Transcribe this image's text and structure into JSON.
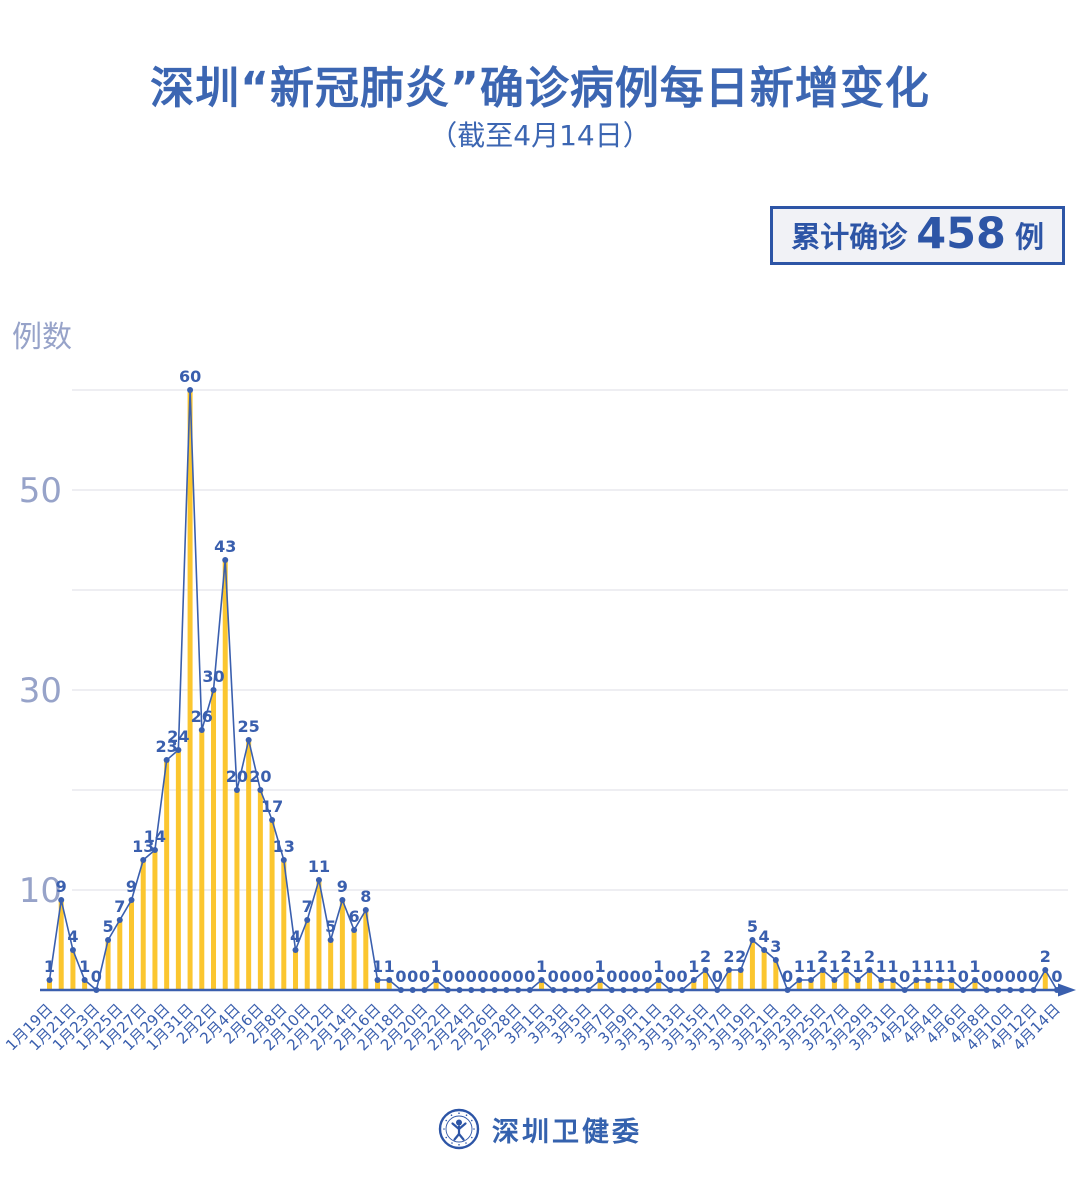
{
  "header": {
    "title": "深圳“新冠肺炎”确诊病例每日新增变化",
    "subtitle": "（截至4月14日）"
  },
  "badge": {
    "prefix": "累计确诊",
    "value": "458",
    "suffix": "例"
  },
  "footer": {
    "logo_icon": "shenzhen-health-commission-emblem-icon",
    "text": "深圳卫健委"
  },
  "colors": {
    "accent_blue": "#3a5fae",
    "title_blue": "#3c66b2",
    "bar_yellow": "#fbc62f",
    "grid_gray": "#e8e9ee",
    "y_label_gray": "#97a3c9",
    "badge_blue": "#2d55a6",
    "badge_bg": "#f1f2f6",
    "background": "#ffffff"
  },
  "chart_data": {
    "type": "bar",
    "overlay": "line",
    "title": "深圳“新冠肺炎”确诊病例每日新增变化",
    "subtitle": "（截至4月14日）",
    "ylabel": "例数",
    "xlabel": "",
    "legend": "none",
    "grid": "horizontal",
    "ylim": [
      0,
      62
    ],
    "n_points": 87,
    "x_start": "1月19日",
    "x_end": "4月14日",
    "x_tick_labels": [
      "1月19日",
      "1月21日",
      "1月23日",
      "1月25日",
      "1月27日",
      "1月29日",
      "1月31日",
      "2月2日",
      "2月4日",
      "2月6日",
      "2月8日",
      "2月10日",
      "2月12日",
      "2月14日",
      "2月16日",
      "2月18日",
      "2月20日",
      "2月22日",
      "2月24日",
      "2月26日",
      "2月28日",
      "3月1日",
      "3月3日",
      "3月5日",
      "3月7日",
      "3月9日",
      "3月11日",
      "3月13日",
      "3月15日",
      "3月17日",
      "3月19日",
      "3月21日",
      "3月23日",
      "3月25日",
      "3月27日",
      "3月29日",
      "3月31日",
      "4月2日",
      "4月4日",
      "4月6日",
      "4月8日",
      "4月10日",
      "4月12日",
      "4月14日"
    ],
    "x_tick_every": 2,
    "values": [
      1,
      9,
      4,
      1,
      0,
      5,
      7,
      9,
      13,
      14,
      23,
      24,
      60,
      26,
      30,
      43,
      20,
      25,
      20,
      17,
      13,
      4,
      7,
      11,
      5,
      9,
      6,
      8,
      1,
      1,
      0,
      0,
      0,
      1,
      0,
      0,
      0,
      0,
      0,
      0,
      0,
      0,
      1,
      0,
      0,
      0,
      0,
      1,
      0,
      0,
      0,
      0,
      1,
      0,
      0,
      1,
      2,
      0,
      2,
      2,
      5,
      4,
      3,
      0,
      1,
      1,
      2,
      1,
      2,
      1,
      2,
      1,
      1,
      0,
      1,
      1,
      1,
      1,
      0,
      1,
      0,
      0,
      0,
      0,
      0,
      2,
      0
    ],
    "values_sum": 458,
    "y_gridline_values": [
      10,
      20,
      30,
      40,
      50,
      60
    ],
    "y_tick_labels": [
      {
        "label": "50",
        "value": 50
      },
      {
        "label": "30",
        "value": 30
      },
      {
        "label": "10",
        "value": 10
      }
    ]
  }
}
